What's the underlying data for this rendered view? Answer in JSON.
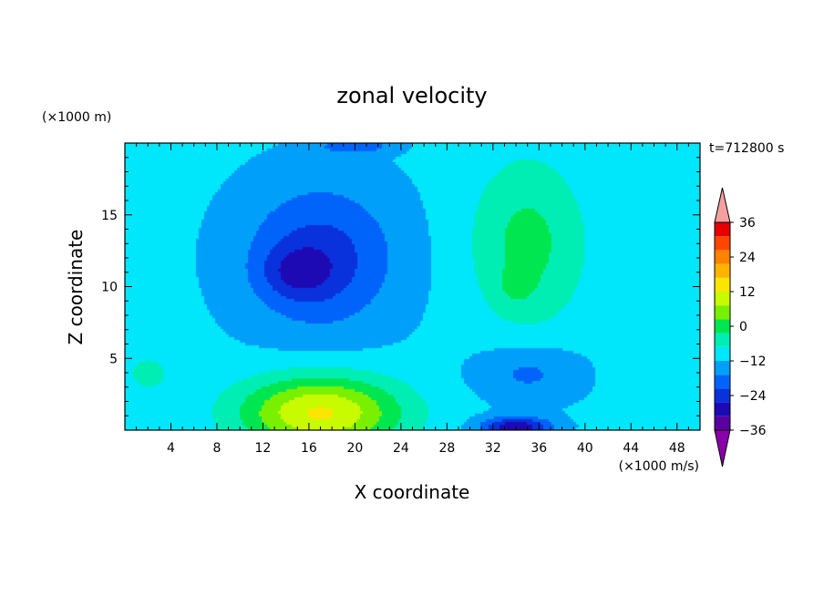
{
  "chart_data": {
    "type": "heatmap",
    "title": "zonal velocity",
    "xlabel": "X coordinate",
    "ylabel": "Z coordinate",
    "x_unit": "(×1000 m/s)",
    "y_unit": "(×1000 m)",
    "time_label": "t=712800 s",
    "xlim": [
      0,
      50
    ],
    "ylim": [
      0,
      20
    ],
    "x_ticks": [
      4,
      8,
      12,
      16,
      20,
      24,
      28,
      32,
      36,
      40,
      44,
      48
    ],
    "y_ticks": [
      5,
      10,
      15
    ],
    "colorbar": {
      "min": -42,
      "max": 42,
      "step": 6,
      "tick_values": [
        36,
        24,
        12,
        0,
        -12,
        -24,
        -36
      ],
      "tick_labels": [
        "36",
        "24",
        "12",
        "0",
        "−12",
        "−24",
        "−36"
      ],
      "colors": [
        "#8a00a8",
        "#5a00a0",
        "#1e0ab4",
        "#0a32dc",
        "#0064fa",
        "#00a0fa",
        "#00e6fa",
        "#00eeb4",
        "#00e650",
        "#78f000",
        "#c8fa00",
        "#fae600",
        "#ffb400",
        "#ff8200",
        "#ff4600",
        "#e60000",
        "#f5a0a0"
      ]
    },
    "field_blobs": [
      {
        "x": 17,
        "y": 12,
        "sx": 6.5,
        "sy": 5.0,
        "a": -16
      },
      {
        "x": 15,
        "y": 11,
        "sx": 3.0,
        "sy": 1.8,
        "a": -10
      },
      {
        "x": 17,
        "y": 1.2,
        "sx": 7.0,
        "sy": 2.6,
        "a": 30
      },
      {
        "x": 35,
        "y": 13,
        "sx": 5.0,
        "sy": 6.0,
        "a": 13
      },
      {
        "x": 34,
        "y": 10,
        "sx": 1.5,
        "sy": 1.2,
        "a": 5
      },
      {
        "x": 34,
        "y": 0.2,
        "sx": 3.0,
        "sy": 0.7,
        "a": -24
      },
      {
        "x": 35,
        "y": 4,
        "sx": 4.5,
        "sy": 2.0,
        "a": -9
      },
      {
        "x": 45,
        "y": 11,
        "sx": 3.0,
        "sy": 7.0,
        "a": 4
      },
      {
        "x": 2,
        "y": 4,
        "sx": 3.0,
        "sy": 2.0,
        "a": 6
      },
      {
        "x": 20,
        "y": 19.8,
        "sx": 3.0,
        "sy": 0.5,
        "a": -12
      }
    ],
    "field_base": -5
  }
}
